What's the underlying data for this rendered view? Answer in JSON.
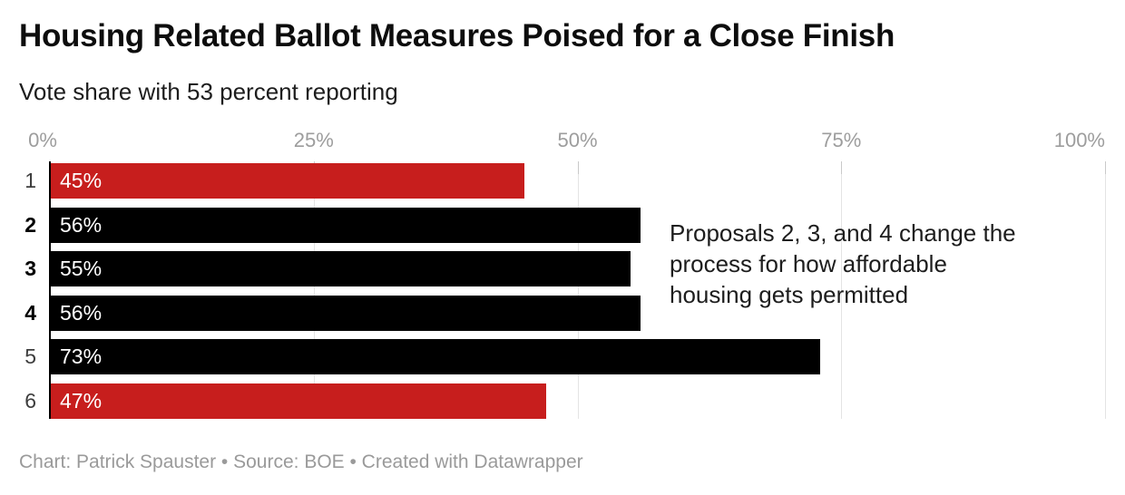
{
  "chart_data": {
    "type": "bar",
    "orientation": "horizontal",
    "title": "Housing Related Ballot Measures Poised for a Close Finish",
    "subtitle": "Vote share with 53 percent reporting",
    "categories": [
      "1",
      "2",
      "3",
      "4",
      "5",
      "6"
    ],
    "values": [
      45,
      56,
      55,
      56,
      73,
      47
    ],
    "value_labels": [
      "45%",
      "56%",
      "55%",
      "56%",
      "73%",
      "47%"
    ],
    "bar_colors": [
      "#c71e1d",
      "#000000",
      "#000000",
      "#000000",
      "#000000",
      "#c71e1d"
    ],
    "bold_rows": [
      false,
      true,
      true,
      true,
      false,
      false
    ],
    "x_axis": {
      "range": [
        0,
        100
      ],
      "tick_values": [
        0,
        25,
        50,
        75,
        100
      ],
      "tick_labels": [
        "0%",
        "25%",
        "50%",
        "75%",
        "100%"
      ],
      "grid": true
    },
    "annotation": "Proposals 2, 3, and 4 change the process for how affordable housing gets permitted"
  },
  "footer": {
    "credit": "Chart: Patrick Spauster • Source: BOE • Created with Datawrapper"
  },
  "colors": {
    "bar_red": "#c71e1d",
    "bar_black": "#000000",
    "grid": "#e4e4e4",
    "axis_line": "#000000",
    "axis_label": "#9d9d9d",
    "footer_text": "#9a9a9a",
    "text": "#1d1d1d"
  }
}
